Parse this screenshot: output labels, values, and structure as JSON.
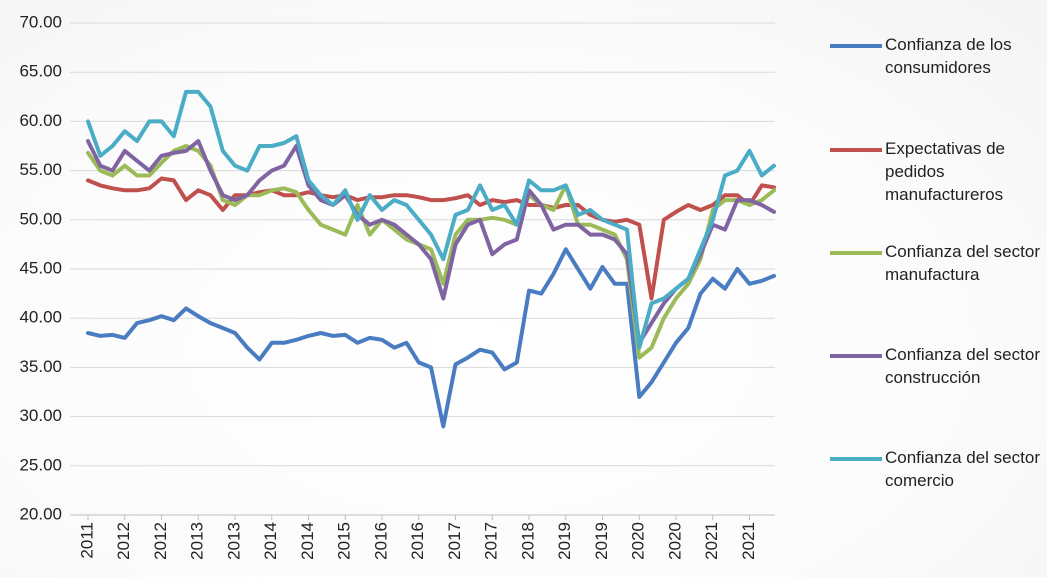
{
  "chart_data": {
    "type": "line",
    "categories": [
      "2011",
      null,
      null,
      "2012",
      null,
      null,
      "2012",
      null,
      null,
      "2013",
      null,
      null,
      "2013",
      null,
      null,
      "2014",
      null,
      null,
      "2014",
      null,
      null,
      "2015",
      null,
      null,
      "2016",
      null,
      null,
      "2016",
      null,
      null,
      "2017",
      null,
      null,
      "2017",
      null,
      null,
      "2018",
      null,
      null,
      "2019",
      null,
      null,
      "2019",
      null,
      null,
      "2020",
      null,
      null,
      "2020",
      null,
      null,
      "2021",
      null,
      null,
      "2021",
      null,
      null
    ],
    "series": [
      {
        "name": "Confianza de los consumidores",
        "color": "#4a7cc1",
        "values": [
          38.5,
          38.2,
          38.3,
          38.0,
          39.5,
          39.8,
          40.2,
          39.8,
          41.0,
          40.2,
          39.5,
          39.0,
          38.5,
          37.0,
          35.8,
          37.5,
          37.5,
          37.8,
          38.2,
          38.5,
          38.2,
          38.3,
          37.5,
          38.0,
          37.8,
          37.0,
          37.5,
          35.5,
          35.0,
          29.0,
          35.3,
          36.0,
          36.8,
          36.5,
          34.8,
          35.5,
          42.8,
          42.5,
          44.5,
          47.0,
          45.0,
          43.0,
          45.2,
          43.5,
          43.5,
          32.0,
          33.5,
          35.5,
          37.5,
          39.0,
          42.5,
          44.0,
          43.0,
          45.0,
          43.5,
          43.8,
          44.3
        ]
      },
      {
        "name": "Expectativas de pedidos manufactureros",
        "color": "#c0504d",
        "values": [
          54.0,
          53.5,
          53.2,
          53.0,
          53.0,
          53.2,
          54.2,
          54.0,
          52.0,
          53.0,
          52.5,
          51.0,
          52.5,
          52.5,
          52.8,
          53.0,
          52.5,
          52.5,
          52.8,
          52.5,
          52.3,
          52.5,
          52.0,
          52.3,
          52.3,
          52.5,
          52.5,
          52.3,
          52.0,
          52.0,
          52.2,
          52.5,
          51.5,
          52.0,
          51.8,
          52.0,
          51.5,
          51.5,
          51.2,
          51.5,
          51.5,
          50.5,
          50.0,
          49.8,
          50.0,
          49.5,
          42.0,
          50.0,
          50.8,
          51.5,
          51.0,
          51.5,
          52.5,
          52.5,
          51.5,
          53.5,
          53.3
        ]
      },
      {
        "name": "Confianza del sector manufactura",
        "color": "#9bbb59",
        "values": [
          56.8,
          55.0,
          54.5,
          55.5,
          54.5,
          54.5,
          55.8,
          57.0,
          57.5,
          57.0,
          55.5,
          52.0,
          51.5,
          52.5,
          52.5,
          53.0,
          53.2,
          52.8,
          51.0,
          49.5,
          49.0,
          48.5,
          51.5,
          48.5,
          50.0,
          49.0,
          48.0,
          47.5,
          47.0,
          43.5,
          48.5,
          50.0,
          50.0,
          50.2,
          50.0,
          49.5,
          52.5,
          51.5,
          51.0,
          53.5,
          49.5,
          49.5,
          49.0,
          48.5,
          46.0,
          36.0,
          37.0,
          40.0,
          42.0,
          43.5,
          46.0,
          51.0,
          52.0,
          52.0,
          51.5,
          52.0,
          53.0
        ]
      },
      {
        "name": "Confianza del sector construcción",
        "color": "#8064a2",
        "values": [
          58.0,
          55.5,
          55.0,
          57.0,
          56.0,
          55.0,
          56.5,
          56.8,
          57.0,
          58.0,
          55.0,
          52.5,
          52.0,
          52.5,
          54.0,
          55.0,
          55.5,
          57.5,
          53.5,
          52.0,
          51.5,
          52.5,
          50.5,
          49.5,
          50.0,
          49.5,
          48.5,
          47.5,
          46.0,
          42.0,
          47.5,
          49.5,
          50.0,
          46.5,
          47.5,
          48.0,
          53.0,
          51.5,
          49.0,
          49.5,
          49.5,
          48.5,
          48.5,
          48.0,
          46.5,
          37.5,
          39.5,
          41.5,
          43.0,
          44.0,
          46.5,
          49.5,
          49.0,
          52.0,
          52.0,
          51.5,
          50.8
        ]
      },
      {
        "name": "Confianza del sector comercio",
        "color": "#4bacc6",
        "values": [
          60.0,
          56.5,
          57.5,
          59.0,
          58.0,
          60.0,
          60.0,
          58.5,
          63.0,
          63.0,
          61.5,
          57.0,
          55.5,
          55.0,
          57.5,
          57.5,
          57.8,
          58.5,
          54.0,
          52.5,
          51.5,
          53.0,
          50.0,
          52.5,
          51.0,
          52.0,
          51.5,
          50.0,
          48.5,
          46.0,
          50.5,
          51.0,
          53.5,
          51.0,
          51.5,
          49.5,
          54.0,
          53.0,
          53.0,
          53.5,
          50.5,
          51.0,
          50.0,
          49.5,
          49.0,
          37.0,
          41.5,
          42.0,
          43.0,
          44.0,
          47.0,
          50.0,
          54.5,
          55.0,
          57.0,
          54.5,
          55.5
        ]
      }
    ],
    "ylim": [
      20,
      70
    ],
    "yticks": [
      {
        "value": 20,
        "label": "20.00"
      },
      {
        "value": 25,
        "label": "25.00"
      },
      {
        "value": 30,
        "label": "30.00"
      },
      {
        "value": 35,
        "label": "35.00"
      },
      {
        "value": 40,
        "label": "40.00"
      },
      {
        "value": 45,
        "label": "45.00"
      },
      {
        "value": 50,
        "label": "50.00"
      },
      {
        "value": 55,
        "label": "55.00"
      },
      {
        "value": 60,
        "label": "60.00"
      },
      {
        "value": 65,
        "label": "65.00"
      },
      {
        "value": 70,
        "label": "70.00"
      }
    ],
    "grid": true
  }
}
